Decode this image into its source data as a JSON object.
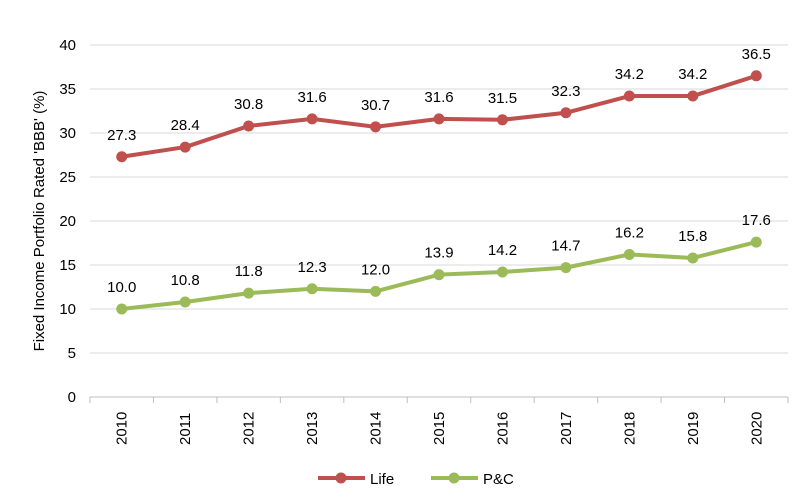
{
  "chart_data": {
    "type": "line",
    "title": "",
    "xlabel": "",
    "ylabel": "Fixed Income Portfolio Rated 'BBB' (%)",
    "ylim": [
      0,
      40
    ],
    "yticks": [
      0,
      5,
      10,
      15,
      20,
      25,
      30,
      35,
      40
    ],
    "grid": true,
    "legend": "bottom",
    "categories": [
      "2010",
      "2011",
      "2012",
      "2013",
      "2014",
      "2015",
      "2016",
      "2017",
      "2018",
      "2019",
      "2020"
    ],
    "series": [
      {
        "name": "Life",
        "color": "#c0504d",
        "values": [
          27.3,
          28.4,
          30.8,
          31.6,
          30.7,
          31.6,
          31.5,
          32.3,
          34.2,
          34.2,
          36.5
        ]
      },
      {
        "name": "P&C",
        "color": "#9bbb59",
        "values": [
          10.0,
          10.8,
          11.8,
          12.3,
          12.0,
          13.9,
          14.2,
          14.7,
          16.2,
          15.8,
          17.6
        ]
      }
    ]
  }
}
